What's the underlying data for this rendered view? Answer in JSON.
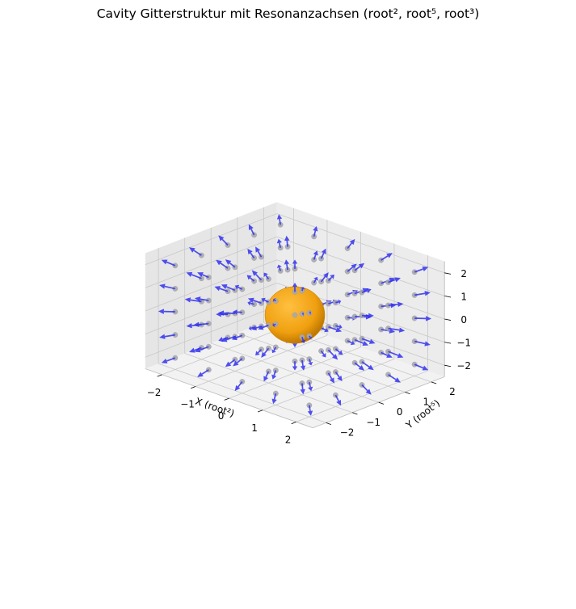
{
  "chart_data": {
    "type": "3d-quiver",
    "title": "Cavity Gitterstruktur mit Resonanzachsen (root², root⁵, root³)",
    "xlabel": "X (root²)",
    "ylabel": "Y (root⁵)",
    "zlabel": "",
    "xlim": [
      -2.5,
      2.5
    ],
    "ylim": [
      -2.5,
      2.5
    ],
    "zlim": [
      -2.5,
      2.5
    ],
    "x_ticks": [
      -2,
      -1,
      0,
      1,
      2
    ],
    "y_ticks": [
      -2,
      -1,
      0,
      1,
      2
    ],
    "z_ticks": [
      -2,
      -1,
      0,
      1,
      2
    ],
    "x_tick_labels": [
      "−2",
      "−1",
      "0",
      "1",
      "2"
    ],
    "y_tick_labels": [
      "−2",
      "−1",
      "0",
      "1",
      "2"
    ],
    "z_tick_labels": [
      "−2",
      "−1",
      "0",
      "1",
      "2"
    ],
    "grid_points_per_axis": [
      -2,
      -1,
      0,
      1,
      2
    ],
    "vector_field": "radial outward from origin, unit length 0.4",
    "arrow_length": 0.4,
    "sphere": {
      "center": [
        0,
        0,
        0
      ],
      "radius": 0.5
    },
    "grid": true,
    "colors": {
      "arrow": "#2b2bf0",
      "point": "#a8a8b0",
      "sphere": "#f0a010",
      "pane": "#f2f2f2",
      "grid": "#c8c8c8"
    }
  }
}
